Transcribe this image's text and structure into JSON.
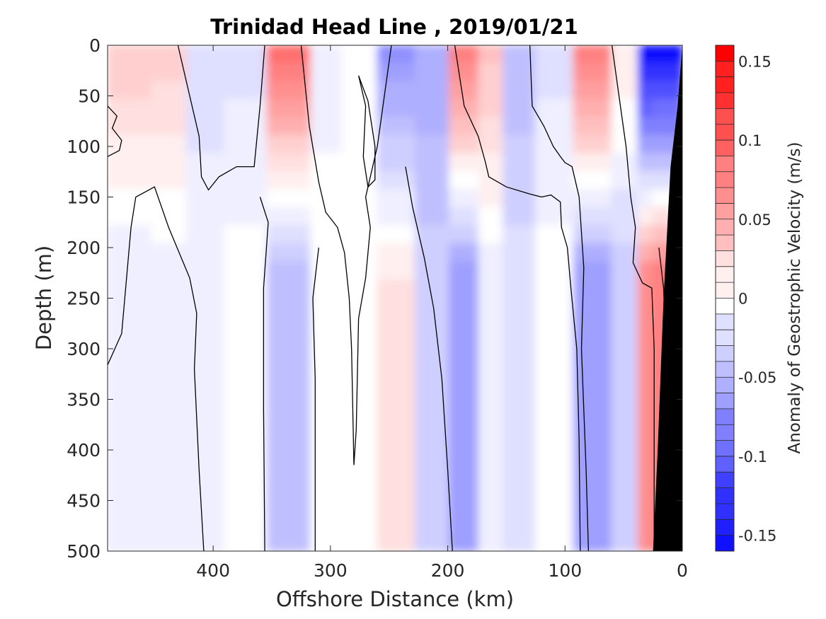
{
  "chart_data": {
    "type": "heatmap",
    "title": "Trinidad Head Line , 2019/01/21",
    "xlabel": "Offshore Distance (km)",
    "ylabel": "Depth (m)",
    "xlim": [
      490,
      0
    ],
    "ylim": [
      0,
      500
    ],
    "x_reversed": true,
    "y_reversed": true,
    "x_ticks": [
      400,
      300,
      200,
      100,
      0
    ],
    "x_tick_labels": [
      "400",
      "300",
      "200",
      "100",
      "0"
    ],
    "y_ticks": [
      0,
      50,
      100,
      150,
      200,
      250,
      300,
      350,
      400,
      450,
      500
    ],
    "y_tick_labels": [
      "0",
      "50",
      "100",
      "150",
      "200",
      "250",
      "300",
      "350",
      "400",
      "450",
      "500"
    ],
    "colorbar": {
      "label": "Anomaly of Geostrophic Velocity (m/s)",
      "range": [
        -0.16,
        0.16
      ],
      "step": 0.01,
      "ticks": [
        0.15,
        0.1,
        0.05,
        0,
        -0.05,
        -0.1,
        -0.15
      ],
      "tick_labels": [
        "0.15",
        "0.1",
        "0.05",
        "0",
        "-0.05",
        "-0.1",
        "-0.15"
      ],
      "negative_color": "#0000ff",
      "zero_color": "#ffffff",
      "positive_color": "#ff0000"
    },
    "velocity_field": {
      "columns": [
        {
          "x": 465,
          "top": 0.035,
          "bottom": -0.015
        },
        {
          "x": 440,
          "top": 0.03,
          "bottom": -0.01
        },
        {
          "x": 405,
          "top": -0.02,
          "bottom": -0.01
        },
        {
          "x": 375,
          "top": -0.02,
          "bottom": 0.0
        },
        {
          "x": 333,
          "top": 0.095,
          "bottom": -0.045
        },
        {
          "x": 300,
          "top": -0.01,
          "bottom": 0.0
        },
        {
          "x": 280,
          "top": 0.005,
          "bottom": 0.0
        },
        {
          "x": 240,
          "top": -0.07,
          "bottom": 0.015
        },
        {
          "x": 215,
          "top": -0.055,
          "bottom": -0.03
        },
        {
          "x": 182,
          "top": 0.09,
          "bottom": -0.06
        },
        {
          "x": 165,
          "top": 0.04,
          "bottom": -0.01
        },
        {
          "x": 140,
          "top": -0.045,
          "bottom": -0.02
        },
        {
          "x": 110,
          "top": -0.02,
          "bottom": 0.0
        },
        {
          "x": 75,
          "top": 0.09,
          "bottom": -0.06
        },
        {
          "x": 45,
          "top": 0.015,
          "bottom": -0.03
        },
        {
          "x": 30,
          "top": -0.16,
          "bottom": 0.07
        },
        {
          "x": 20,
          "top": -0.16,
          "bottom": 0.08
        }
      ]
    },
    "zero_contours": [
      [
        [
          490,
          60
        ],
        [
          482,
          70
        ],
        [
          486,
          82
        ],
        [
          478,
          94
        ],
        [
          480,
          104
        ],
        [
          490,
          110
        ]
      ],
      [
        [
          490,
          316
        ],
        [
          478,
          285
        ],
        [
          470,
          180
        ],
        [
          466,
          150
        ],
        [
          450,
          140
        ],
        [
          438,
          180
        ],
        [
          420,
          230
        ],
        [
          414,
          265
        ],
        [
          416,
          320
        ],
        [
          412,
          420
        ],
        [
          408,
          500
        ]
      ],
      [
        [
          430,
          0
        ],
        [
          420,
          50
        ],
        [
          412,
          90
        ],
        [
          410,
          130
        ],
        [
          404,
          143
        ],
        [
          395,
          130
        ],
        [
          380,
          120
        ],
        [
          365,
          120
        ],
        [
          360,
          60
        ],
        [
          356,
          0
        ]
      ],
      [
        [
          360,
          150
        ],
        [
          353,
          175
        ],
        [
          357,
          240
        ],
        [
          357,
          360
        ],
        [
          356,
          500
        ]
      ],
      [
        [
          325,
          0
        ],
        [
          318,
          80
        ],
        [
          310,
          135
        ],
        [
          304,
          165
        ],
        [
          294,
          180
        ],
        [
          288,
          205
        ],
        [
          284,
          250
        ],
        [
          282,
          300
        ],
        [
          280,
          415
        ],
        [
          278,
          380
        ],
        [
          276,
          270
        ],
        [
          270,
          230
        ],
        [
          266,
          180
        ],
        [
          270,
          150
        ],
        [
          260,
          100
        ],
        [
          248,
          0
        ]
      ],
      [
        [
          276,
          30
        ],
        [
          270,
          60
        ],
        [
          272,
          110
        ],
        [
          268,
          140
        ],
        [
          262,
          133
        ],
        [
          262,
          100
        ],
        [
          268,
          55
        ],
        [
          276,
          30
        ]
      ],
      [
        [
          310,
          200
        ],
        [
          315,
          250
        ],
        [
          313,
          330
        ],
        [
          313,
          500
        ]
      ],
      [
        [
          236,
          120
        ],
        [
          230,
          160
        ],
        [
          220,
          210
        ],
        [
          212,
          260
        ],
        [
          205,
          330
        ],
        [
          200,
          420
        ],
        [
          196,
          500
        ]
      ],
      [
        [
          194,
          0
        ],
        [
          186,
          60
        ],
        [
          174,
          90
        ],
        [
          168,
          115
        ],
        [
          165,
          130
        ],
        [
          150,
          140
        ],
        [
          130,
          147
        ],
        [
          120,
          150
        ],
        [
          112,
          148
        ],
        [
          104,
          155
        ],
        [
          103,
          180
        ],
        [
          98,
          200
        ],
        [
          95,
          240
        ],
        [
          90,
          300
        ],
        [
          88,
          390
        ],
        [
          87,
          500
        ]
      ],
      [
        [
          130,
          0
        ],
        [
          128,
          60
        ],
        [
          118,
          80
        ],
        [
          110,
          100
        ],
        [
          104,
          110
        ],
        [
          100,
          116
        ],
        [
          94,
          120
        ],
        [
          88,
          150
        ],
        [
          84,
          220
        ],
        [
          86,
          300
        ],
        [
          82,
          420
        ],
        [
          80,
          500
        ]
      ],
      [
        [
          60,
          0
        ],
        [
          54,
          50
        ],
        [
          48,
          100
        ],
        [
          44,
          150
        ],
        [
          40,
          180
        ],
        [
          42,
          215
        ],
        [
          34,
          235
        ],
        [
          26,
          240
        ],
        [
          24,
          300
        ],
        [
          24,
          500
        ]
      ],
      [
        [
          20,
          200
        ],
        [
          16,
          240
        ],
        [
          14,
          300
        ],
        [
          12,
          400
        ],
        [
          10,
          500
        ]
      ]
    ]
  }
}
